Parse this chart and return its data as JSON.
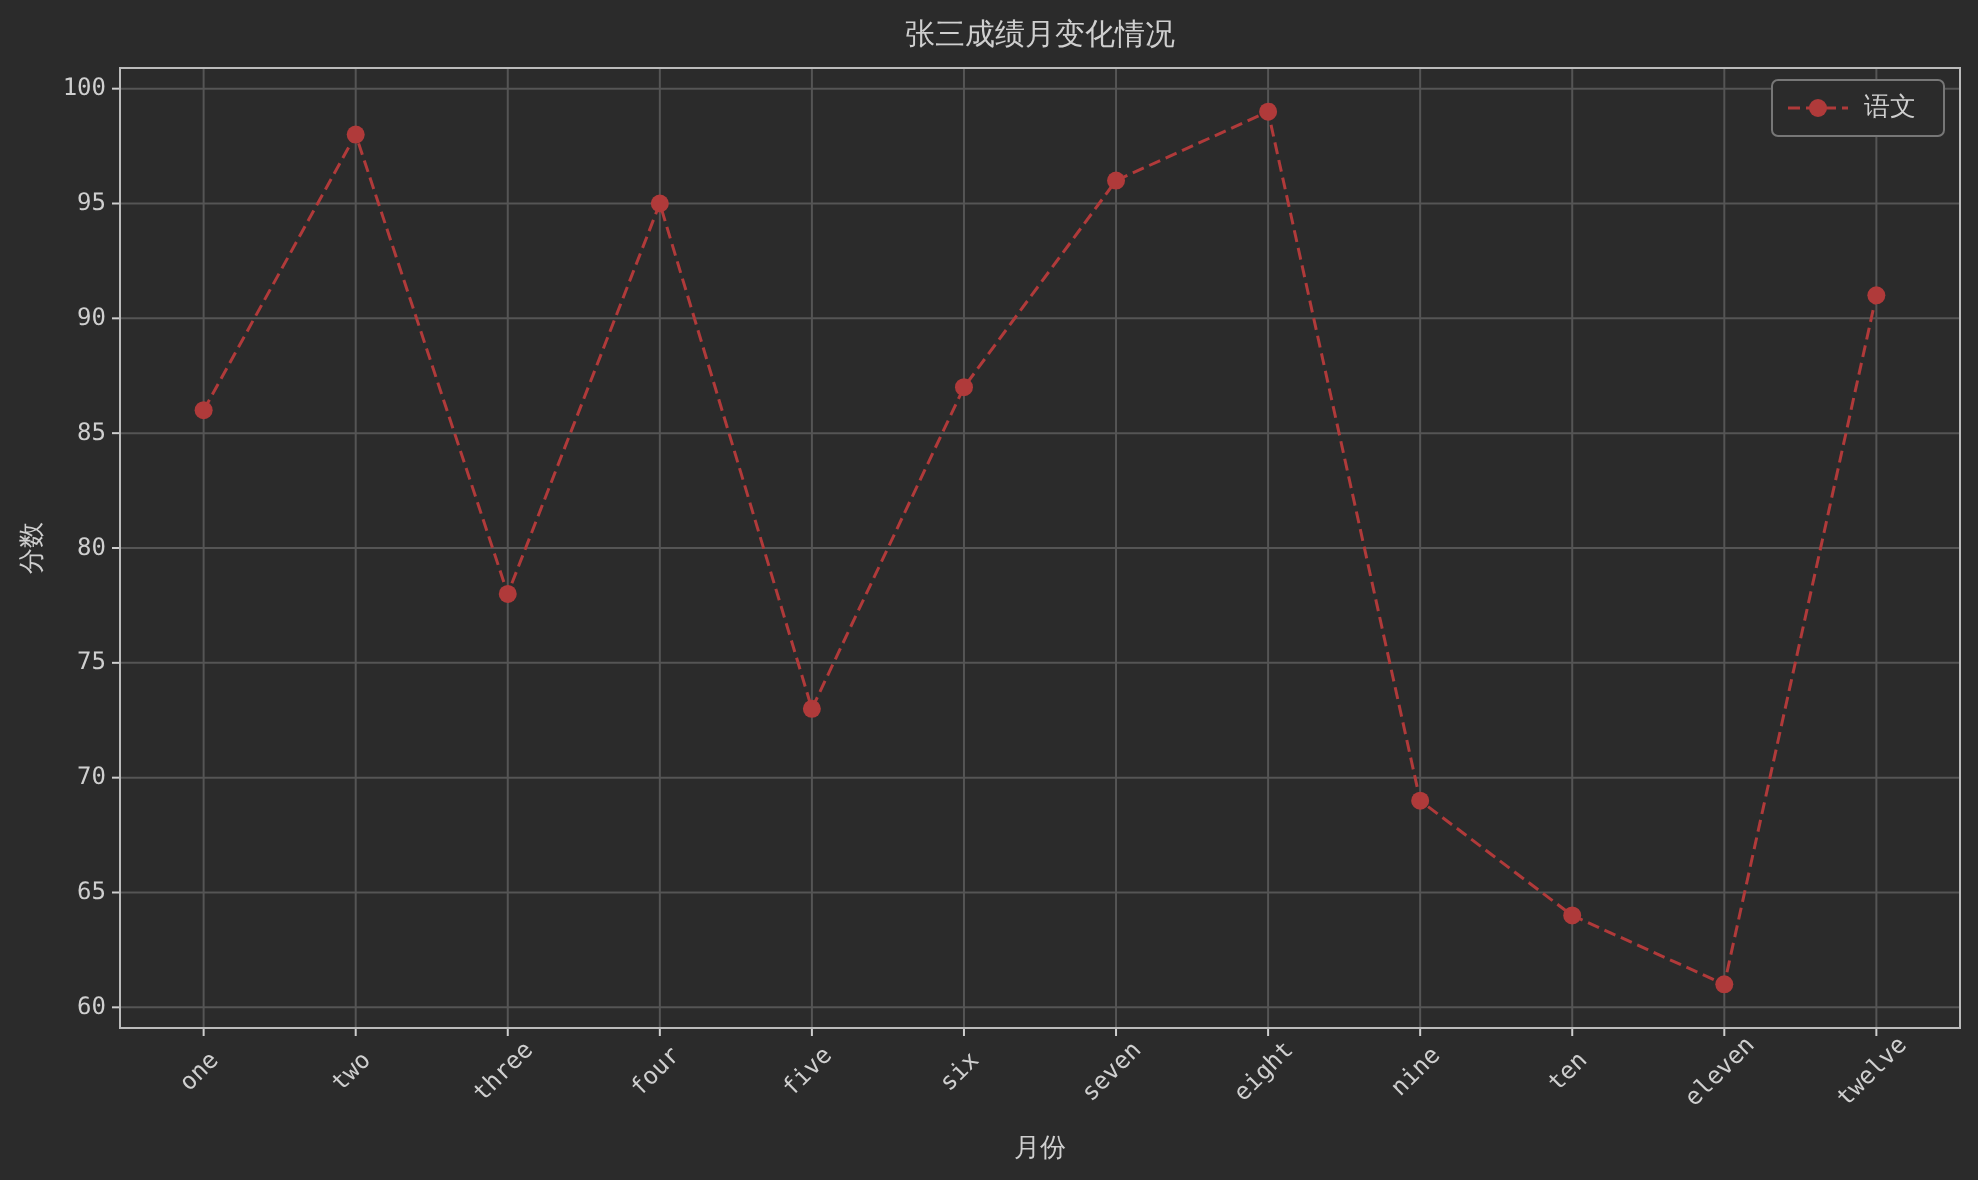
{
  "chart_data": {
    "type": "line",
    "title": "张三成绩月变化情况",
    "xlabel": "月份",
    "ylabel": "分数",
    "categories": [
      "one",
      "two",
      "three",
      "four",
      "five",
      "six",
      "seven",
      "eight",
      "nine",
      "ten",
      "eleven",
      "twelve"
    ],
    "series": [
      {
        "name": "语文",
        "color": "#b03a3a",
        "values": [
          86,
          98,
          78,
          95,
          73,
          87,
          96,
          99,
          69,
          64,
          61,
          91
        ]
      }
    ],
    "ylim": [
      59.1,
      100.9
    ],
    "yticks": [
      60,
      65,
      70,
      75,
      80,
      85,
      90,
      95,
      100
    ],
    "grid": true,
    "legend": "top right",
    "marker": "circle",
    "line_style": "dashed"
  }
}
